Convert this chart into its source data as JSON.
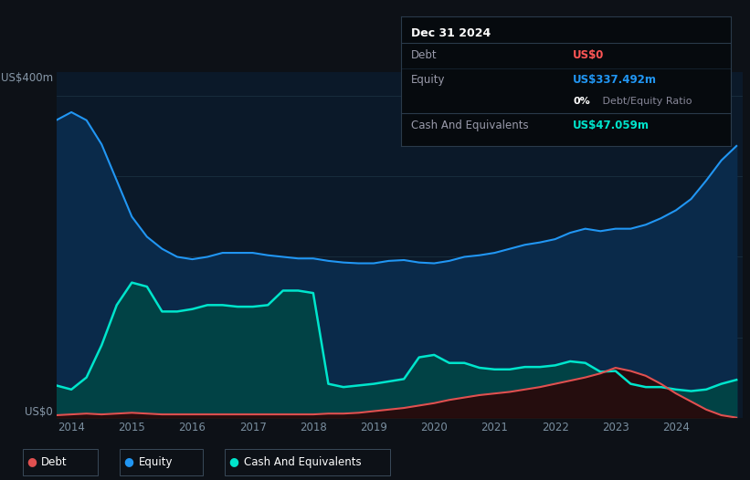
{
  "bg_color": "#0d1117",
  "plot_bg_color": "#0b1929",
  "grid_color": "#1a3040",
  "ylabel_top": "US$400m",
  "ylabel_bottom": "US$0",
  "x_ticks": [
    2014,
    2015,
    2016,
    2017,
    2018,
    2019,
    2020,
    2021,
    2022,
    2023,
    2024
  ],
  "equity_color": "#2196F3",
  "debt_color": "#e05050",
  "cash_color": "#00e5cc",
  "tooltip": {
    "date": "Dec 31 2024",
    "debt_label": "Debt",
    "debt_value": "US$0",
    "debt_color": "#ff5555",
    "equity_label": "Equity",
    "equity_value": "US$337.492m",
    "equity_color": "#2196F3",
    "cash_label": "Cash And Equivalents",
    "cash_value": "US$47.059m",
    "cash_color": "#00e5cc"
  },
  "equity": {
    "x": [
      2013.75,
      2014.0,
      2014.25,
      2014.5,
      2014.75,
      2015.0,
      2015.25,
      2015.5,
      2015.75,
      2016.0,
      2016.25,
      2016.5,
      2016.75,
      2017.0,
      2017.25,
      2017.5,
      2017.75,
      2018.0,
      2018.25,
      2018.5,
      2018.75,
      2019.0,
      2019.25,
      2019.5,
      2019.75,
      2020.0,
      2020.25,
      2020.5,
      2020.75,
      2021.0,
      2021.25,
      2021.5,
      2021.75,
      2022.0,
      2022.25,
      2022.5,
      2022.75,
      2023.0,
      2023.25,
      2023.5,
      2023.75,
      2024.0,
      2024.25,
      2024.5,
      2024.75,
      2025.0
    ],
    "y": [
      370,
      380,
      370,
      340,
      295,
      250,
      225,
      210,
      200,
      197,
      200,
      205,
      205,
      205,
      202,
      200,
      198,
      198,
      195,
      193,
      192,
      192,
      195,
      196,
      193,
      192,
      195,
      200,
      202,
      205,
      210,
      215,
      218,
      222,
      230,
      235,
      232,
      235,
      235,
      240,
      248,
      258,
      272,
      295,
      320,
      338
    ]
  },
  "cash": {
    "x": [
      2013.75,
      2014.0,
      2014.25,
      2014.5,
      2014.75,
      2015.0,
      2015.25,
      2015.5,
      2015.75,
      2016.0,
      2016.25,
      2016.5,
      2016.75,
      2017.0,
      2017.25,
      2017.5,
      2017.75,
      2018.0,
      2018.25,
      2018.5,
      2018.75,
      2019.0,
      2019.25,
      2019.5,
      2019.75,
      2020.0,
      2020.25,
      2020.5,
      2020.75,
      2021.0,
      2021.25,
      2021.5,
      2021.75,
      2022.0,
      2022.25,
      2022.5,
      2022.75,
      2023.0,
      2023.25,
      2023.5,
      2023.75,
      2024.0,
      2024.25,
      2024.5,
      2024.75,
      2025.0
    ],
    "y": [
      40,
      35,
      50,
      90,
      140,
      168,
      163,
      132,
      132,
      135,
      140,
      140,
      138,
      138,
      140,
      158,
      158,
      155,
      42,
      38,
      40,
      42,
      45,
      48,
      75,
      78,
      68,
      68,
      62,
      60,
      60,
      63,
      63,
      65,
      70,
      68,
      57,
      58,
      42,
      38,
      38,
      35,
      33,
      35,
      42,
      47
    ]
  },
  "debt": {
    "x": [
      2013.75,
      2014.0,
      2014.25,
      2014.5,
      2014.75,
      2015.0,
      2015.25,
      2015.5,
      2015.75,
      2016.0,
      2016.25,
      2016.5,
      2016.75,
      2017.0,
      2017.25,
      2017.5,
      2017.75,
      2018.0,
      2018.25,
      2018.5,
      2018.75,
      2019.0,
      2019.25,
      2019.5,
      2019.75,
      2020.0,
      2020.25,
      2020.5,
      2020.75,
      2021.0,
      2021.25,
      2021.5,
      2021.75,
      2022.0,
      2022.25,
      2022.5,
      2022.75,
      2023.0,
      2023.25,
      2023.5,
      2023.75,
      2024.0,
      2024.25,
      2024.5,
      2024.75,
      2025.0
    ],
    "y": [
      3,
      4,
      5,
      4,
      5,
      6,
      5,
      4,
      4,
      4,
      4,
      4,
      4,
      4,
      4,
      4,
      4,
      4,
      5,
      5,
      6,
      8,
      10,
      12,
      15,
      18,
      22,
      25,
      28,
      30,
      32,
      35,
      38,
      42,
      46,
      50,
      55,
      62,
      58,
      52,
      42,
      30,
      20,
      10,
      3,
      0
    ]
  }
}
